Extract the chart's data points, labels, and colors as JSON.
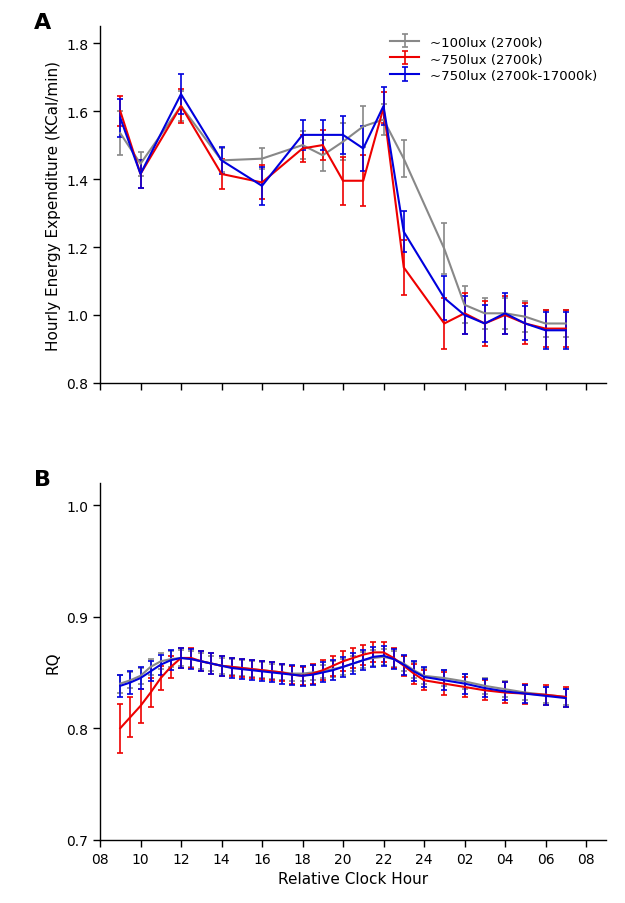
{
  "x_ticks_numeric": [
    8,
    10,
    12,
    14,
    16,
    18,
    20,
    22,
    24,
    26,
    28,
    30,
    32
  ],
  "x_tick_labels": [
    "08",
    "10",
    "12",
    "14",
    "16",
    "18",
    "20",
    "22",
    "24",
    "02",
    "04",
    "06",
    "08"
  ],
  "xlabel": "Relative Clock Hour",
  "colors": {
    "gray": "#888888",
    "red": "#EE0000",
    "blue": "#0000DD"
  },
  "legend_labels": [
    "~100lux (2700k)",
    "~750lux (2700k)",
    "~750lux (2700k-17000k)"
  ],
  "panel_A": {
    "x_pts": [
      9,
      10,
      12,
      14,
      16,
      18,
      19,
      20,
      21,
      22,
      23,
      25,
      26,
      27,
      28,
      29,
      30,
      31
    ],
    "gray_y": [
      1.535,
      1.445,
      1.615,
      1.455,
      1.46,
      1.5,
      1.47,
      1.51,
      1.555,
      1.575,
      1.46,
      1.195,
      1.03,
      1.005,
      1.005,
      0.995,
      0.975,
      0.975
    ],
    "gray_e": [
      0.065,
      0.035,
      0.045,
      0.035,
      0.03,
      0.04,
      0.045,
      0.055,
      0.06,
      0.045,
      0.055,
      0.075,
      0.055,
      0.045,
      0.045,
      0.045,
      0.04,
      0.04
    ],
    "red_y": [
      1.6,
      1.415,
      1.615,
      1.415,
      1.39,
      1.49,
      1.5,
      1.395,
      1.395,
      1.61,
      1.14,
      0.975,
      1.005,
      0.975,
      1.0,
      0.975,
      0.96,
      0.96
    ],
    "red_e": [
      0.045,
      0.04,
      0.05,
      0.045,
      0.05,
      0.04,
      0.045,
      0.07,
      0.075,
      0.045,
      0.08,
      0.075,
      0.06,
      0.065,
      0.055,
      0.06,
      0.055,
      0.055
    ],
    "blue_y": [
      1.58,
      1.415,
      1.65,
      1.455,
      1.38,
      1.53,
      1.53,
      1.53,
      1.49,
      1.615,
      1.245,
      1.05,
      1.0,
      0.975,
      1.005,
      0.975,
      0.955,
      0.955
    ],
    "blue_e": [
      0.055,
      0.04,
      0.06,
      0.04,
      0.055,
      0.045,
      0.045,
      0.055,
      0.065,
      0.055,
      0.06,
      0.065,
      0.055,
      0.055,
      0.06,
      0.05,
      0.055,
      0.055
    ],
    "ylabel": "Hourly Energy Expenditure (KCal/min)",
    "ylim": [
      0.8,
      1.85
    ],
    "yticks": [
      0.8,
      1.0,
      1.2,
      1.4,
      1.6,
      1.8
    ]
  },
  "panel_B": {
    "x_pts": [
      9,
      9.5,
      10,
      10.5,
      11,
      11.5,
      12,
      12.5,
      13,
      13.5,
      14,
      14.5,
      15,
      15.5,
      16,
      16.5,
      17,
      17.5,
      18,
      18.5,
      19,
      19.5,
      20,
      20.5,
      21,
      21.5,
      22,
      22.5,
      23,
      23.5,
      24,
      25,
      26,
      27,
      28,
      29,
      30,
      31
    ],
    "gray_y": [
      0.84,
      0.843,
      0.847,
      0.855,
      0.86,
      0.862,
      0.863,
      0.862,
      0.86,
      0.858,
      0.856,
      0.855,
      0.854,
      0.853,
      0.852,
      0.851,
      0.85,
      0.849,
      0.849,
      0.85,
      0.851,
      0.853,
      0.855,
      0.858,
      0.861,
      0.863,
      0.864,
      0.862,
      0.858,
      0.852,
      0.847,
      0.845,
      0.842,
      0.838,
      0.835,
      0.832,
      0.83,
      0.828
    ],
    "gray_e": [
      0.008,
      0.007,
      0.007,
      0.007,
      0.007,
      0.007,
      0.007,
      0.007,
      0.007,
      0.007,
      0.007,
      0.007,
      0.007,
      0.007,
      0.007,
      0.007,
      0.007,
      0.007,
      0.007,
      0.007,
      0.006,
      0.007,
      0.007,
      0.007,
      0.007,
      0.007,
      0.007,
      0.007,
      0.007,
      0.007,
      0.007,
      0.007,
      0.007,
      0.007,
      0.007,
      0.007,
      0.007,
      0.007
    ],
    "red_y": [
      0.8,
      0.81,
      0.82,
      0.832,
      0.845,
      0.855,
      0.863,
      0.863,
      0.86,
      0.858,
      0.856,
      0.855,
      0.854,
      0.853,
      0.852,
      0.851,
      0.85,
      0.848,
      0.847,
      0.849,
      0.852,
      0.856,
      0.86,
      0.863,
      0.866,
      0.868,
      0.868,
      0.863,
      0.856,
      0.849,
      0.843,
      0.84,
      0.837,
      0.834,
      0.832,
      0.831,
      0.83,
      0.828
    ],
    "red_e": [
      0.022,
      0.018,
      0.015,
      0.013,
      0.011,
      0.01,
      0.009,
      0.009,
      0.009,
      0.009,
      0.009,
      0.008,
      0.008,
      0.008,
      0.008,
      0.008,
      0.008,
      0.008,
      0.008,
      0.009,
      0.009,
      0.009,
      0.009,
      0.009,
      0.009,
      0.009,
      0.009,
      0.009,
      0.009,
      0.009,
      0.009,
      0.01,
      0.009,
      0.009,
      0.009,
      0.009,
      0.009,
      0.009
    ],
    "blue_y": [
      0.838,
      0.841,
      0.845,
      0.851,
      0.857,
      0.861,
      0.863,
      0.862,
      0.86,
      0.858,
      0.856,
      0.854,
      0.853,
      0.852,
      0.851,
      0.85,
      0.849,
      0.848,
      0.847,
      0.848,
      0.85,
      0.852,
      0.855,
      0.858,
      0.861,
      0.864,
      0.865,
      0.862,
      0.857,
      0.851,
      0.846,
      0.843,
      0.84,
      0.836,
      0.833,
      0.831,
      0.829,
      0.827
    ],
    "blue_e": [
      0.01,
      0.01,
      0.01,
      0.009,
      0.009,
      0.009,
      0.009,
      0.009,
      0.009,
      0.009,
      0.009,
      0.009,
      0.009,
      0.009,
      0.009,
      0.009,
      0.009,
      0.009,
      0.009,
      0.009,
      0.009,
      0.009,
      0.009,
      0.009,
      0.009,
      0.009,
      0.009,
      0.009,
      0.009,
      0.009,
      0.009,
      0.009,
      0.009,
      0.008,
      0.008,
      0.008,
      0.008,
      0.008
    ],
    "ylabel": "RQ",
    "ylim": [
      0.7,
      1.02
    ],
    "yticks": [
      0.7,
      0.8,
      0.9,
      1.0
    ]
  }
}
